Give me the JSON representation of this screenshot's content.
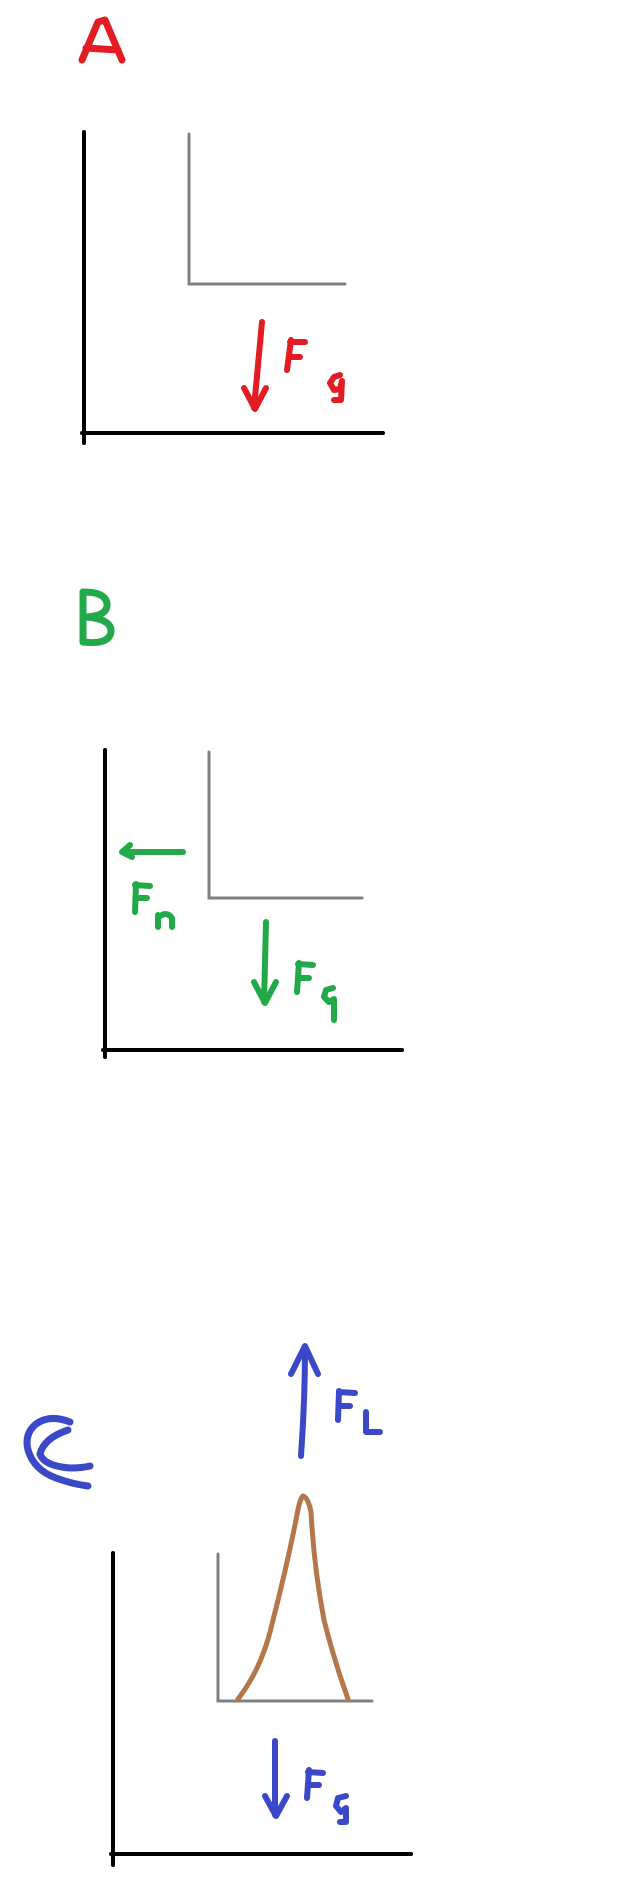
{
  "panels": [
    {
      "id": "A",
      "letter": "A",
      "color": "#e31b23",
      "forces": [
        {
          "name": "gravity",
          "label": "Fg",
          "direction": "down"
        }
      ]
    },
    {
      "id": "B",
      "letter": "B",
      "color": "#22aa4a",
      "forces": [
        {
          "name": "normal",
          "label": "Fn",
          "direction": "left"
        },
        {
          "name": "gravity",
          "label": "Fg",
          "direction": "down"
        }
      ]
    },
    {
      "id": "C",
      "letter": "C",
      "color": "#3b49c8",
      "accent_shape_color": "#b5774a",
      "forces": [
        {
          "name": "lift",
          "label": "FL",
          "direction": "up"
        },
        {
          "name": "gravity",
          "label": "Fg",
          "direction": "down"
        }
      ]
    }
  ]
}
